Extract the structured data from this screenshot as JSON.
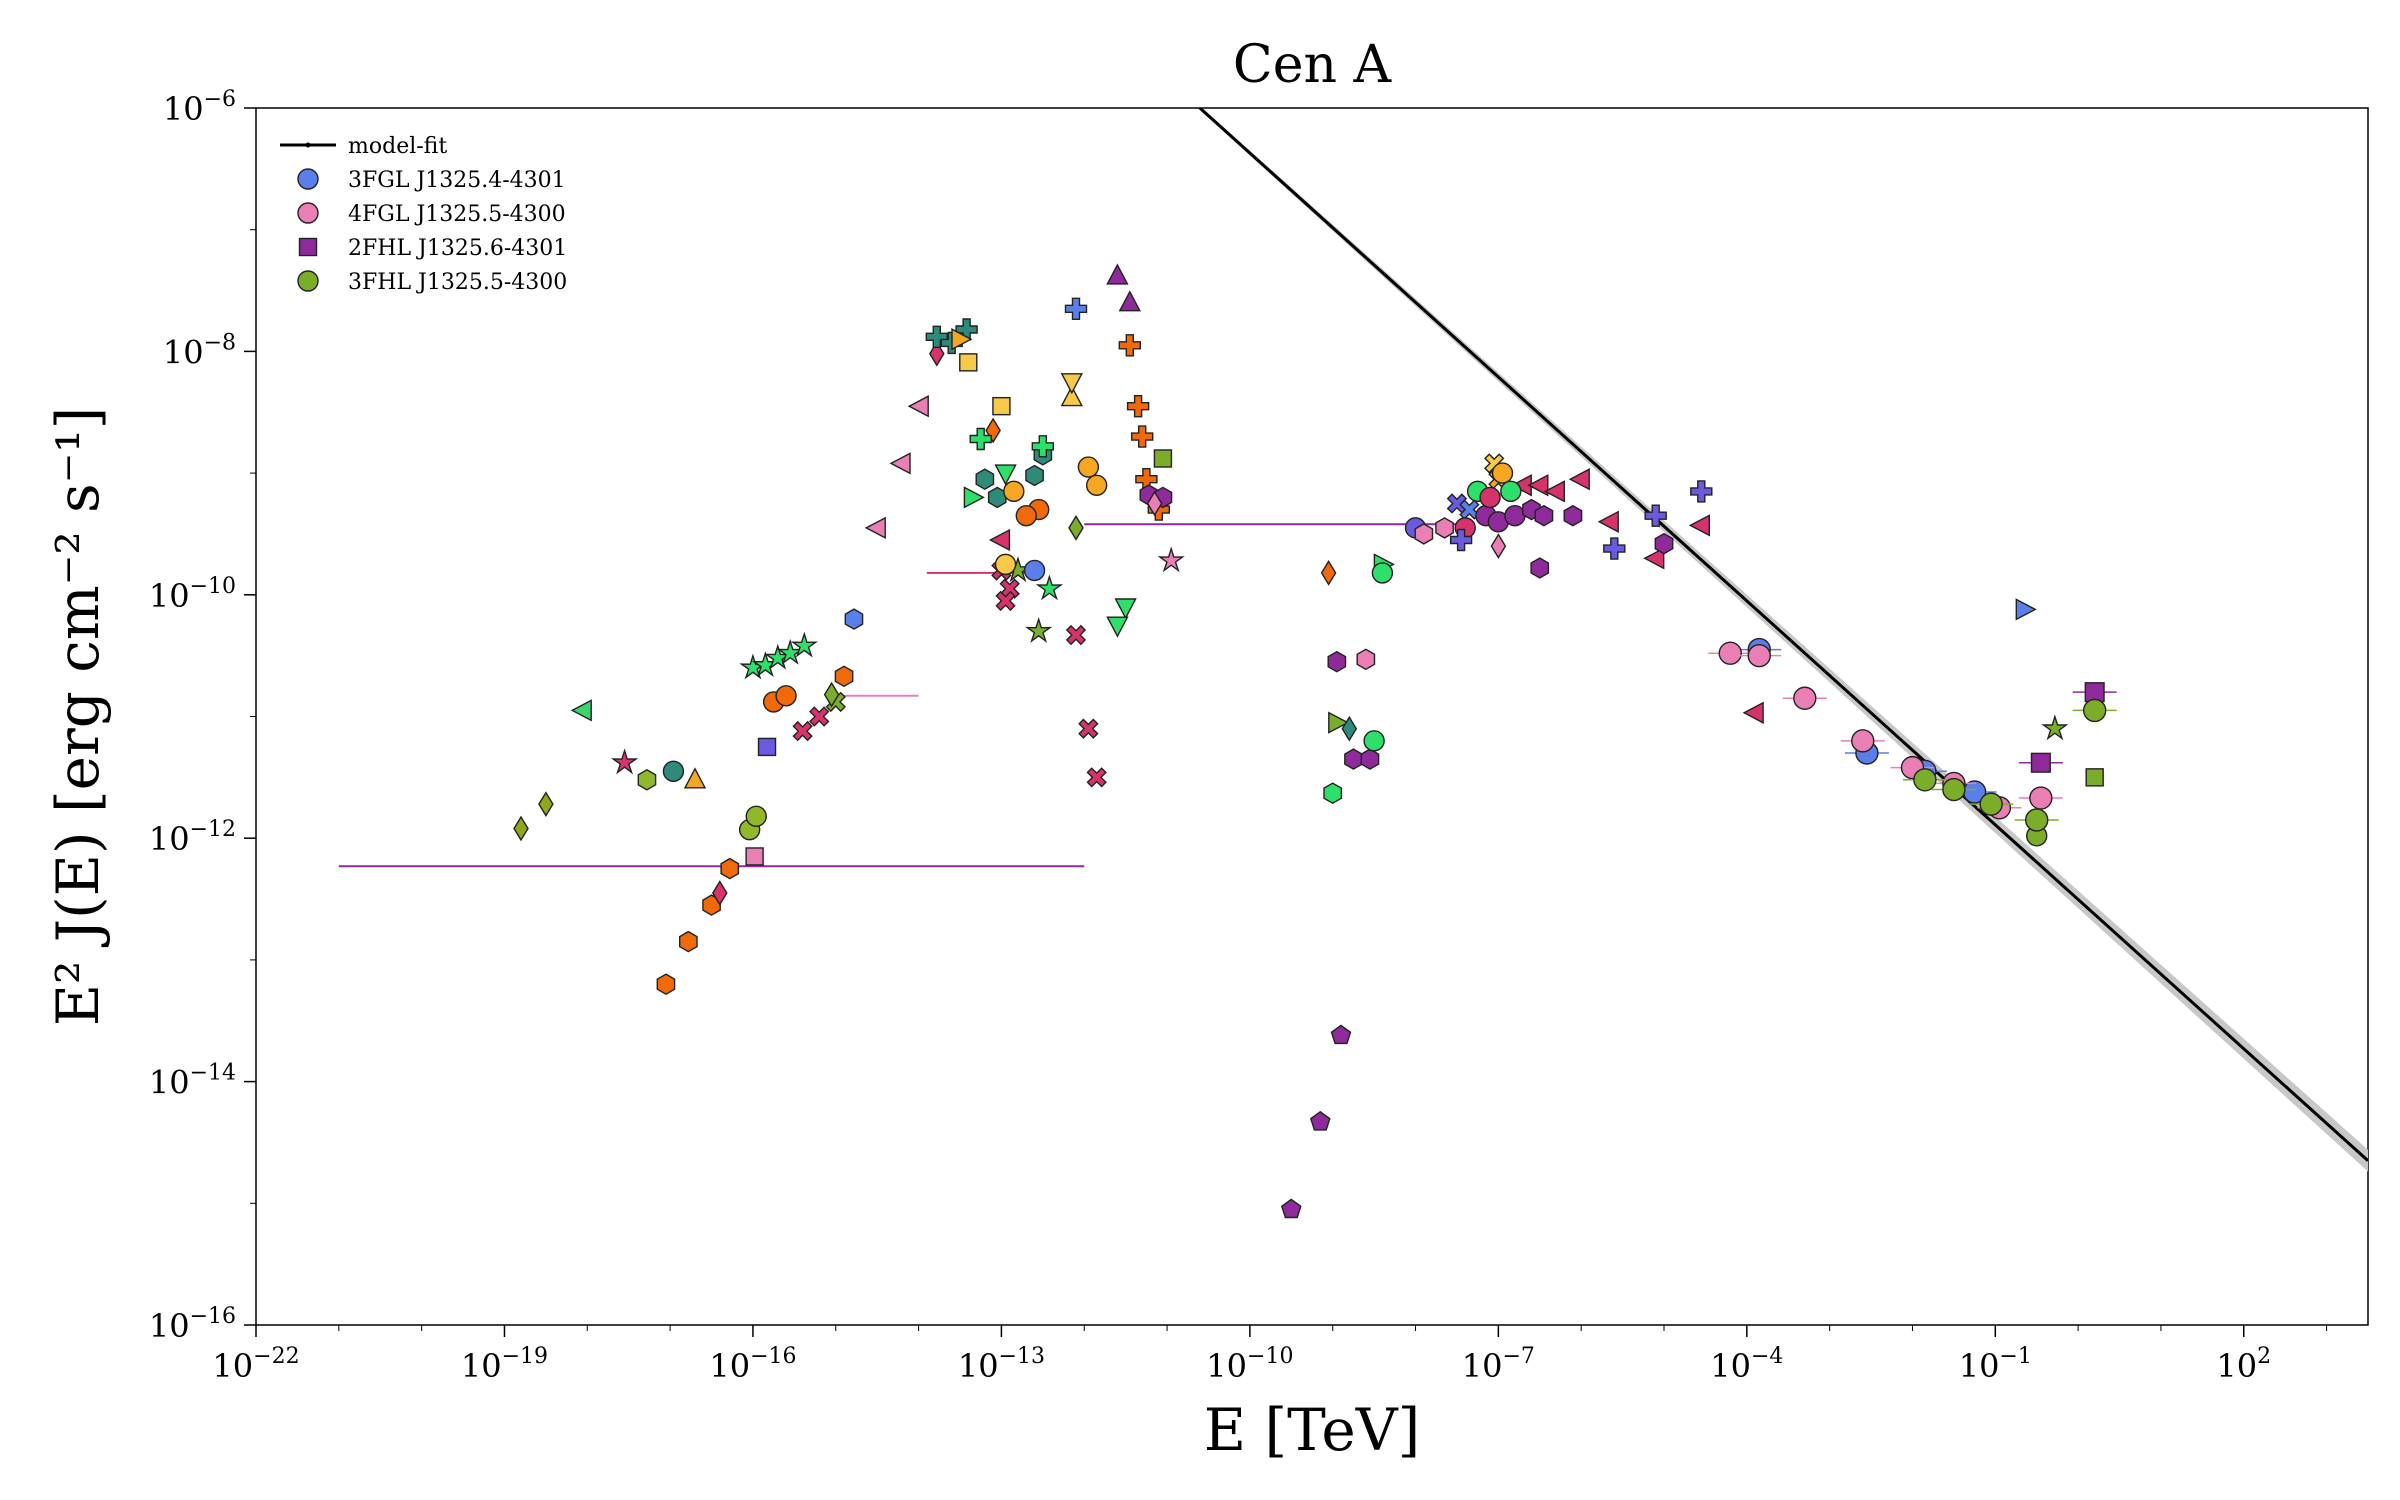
{
  "chart_data": {
    "type": "scatter",
    "title": "Cen A",
    "xlabel": "E [TeV]",
    "ylabel": "E² J(E) [erg cm⁻² s⁻¹]",
    "x_scale": "log",
    "y_scale": "log",
    "xlim_log10": [
      -22,
      3.5
    ],
    "ylim_log10": [
      -16,
      -6
    ],
    "x_ticks": [
      {
        "exp": -22,
        "base": "10",
        "sup": "−22"
      },
      {
        "exp": -19,
        "base": "10",
        "sup": "−19"
      },
      {
        "exp": -16,
        "base": "10",
        "sup": "−16"
      },
      {
        "exp": -13,
        "base": "10",
        "sup": "−13"
      },
      {
        "exp": -10,
        "base": "10",
        "sup": "−10"
      },
      {
        "exp": -7,
        "base": "10",
        "sup": "−7"
      },
      {
        "exp": -4,
        "base": "10",
        "sup": "−4"
      },
      {
        "exp": -1,
        "base": "10",
        "sup": "−1"
      },
      {
        "exp": 2,
        "base": "10",
        "sup": "2"
      }
    ],
    "y_ticks": [
      {
        "exp": -6,
        "base": "10",
        "sup": "−6"
      },
      {
        "exp": -8,
        "base": "10",
        "sup": "−8"
      },
      {
        "exp": -10,
        "base": "10",
        "sup": "−10"
      },
      {
        "exp": -12,
        "base": "10",
        "sup": "−12"
      },
      {
        "exp": -14,
        "base": "10",
        "sup": "−14"
      },
      {
        "exp": -16,
        "base": "10",
        "sup": "−16"
      }
    ],
    "legend": [
      {
        "label": "model-fit",
        "marker": "line",
        "color": "#000000"
      },
      {
        "label": "3FGL J1325.4-4301",
        "marker": "circle",
        "color": "#5b7fe8"
      },
      {
        "label": "4FGL J1325.5-4300",
        "marker": "circle",
        "color": "#e97fb5"
      },
      {
        "label": "2FHL J1325.6-4301",
        "marker": "square",
        "color": "#8e2a9a"
      },
      {
        "label": "3FHL J1325.5-4300",
        "marker": "circle",
        "color": "#7cad2a"
      }
    ],
    "model_fit": {
      "points_log10": [
        [
          -10.62,
          -5.99
        ],
        [
          3.5,
          -14.65
        ]
      ],
      "band_width_dex": 0.06,
      "color": "#000000"
    },
    "series": [
      {
        "name": "3FGL J1325.4-4301",
        "marker": "circle",
        "color": "#5b7fe8",
        "points_log10": [
          [
            -3.85,
            -10.45
          ],
          [
            -2.55,
            -11.3
          ],
          [
            -1.85,
            -11.45
          ],
          [
            -1.25,
            -11.62
          ]
        ]
      },
      {
        "name": "4FGL J1325.5-4300",
        "marker": "circle",
        "color": "#e97fb5",
        "points_log10": [
          [
            -4.2,
            -10.48
          ],
          [
            -3.85,
            -10.5
          ],
          [
            -3.3,
            -10.85
          ],
          [
            -2.6,
            -11.2
          ],
          [
            -2.0,
            -11.42
          ],
          [
            -1.5,
            -11.55
          ],
          [
            -0.95,
            -11.75
          ],
          [
            -0.45,
            -11.67
          ]
        ]
      },
      {
        "name": "2FHL J1325.6-4301",
        "marker": "square",
        "color": "#8e2a9a",
        "points_log10": [
          [
            -0.45,
            -11.38
          ],
          [
            0.2,
            -10.8
          ]
        ]
      },
      {
        "name": "3FHL J1325.5-4300",
        "marker": "circle",
        "color": "#7cad2a",
        "points_log10": [
          [
            -1.85,
            -11.52
          ],
          [
            -1.5,
            -11.6
          ],
          [
            -1.05,
            -11.72
          ],
          [
            -0.5,
            -11.85
          ],
          [
            0.2,
            -10.95
          ]
        ]
      }
    ],
    "archival_points": [
      {
        "marker": "diamond",
        "color": "#8fa61f",
        "x": -18.8,
        "y": -11.92
      },
      {
        "marker": "diamond",
        "color": "#8fa61f",
        "x": -18.5,
        "y": -11.72
      },
      {
        "marker": "tri-left",
        "color": "#3bd46a",
        "x": -18.05,
        "y": -10.95
      },
      {
        "marker": "star",
        "color": "#d6336c",
        "x": -17.55,
        "y": -11.38
      },
      {
        "marker": "hexagon",
        "color": "#8fb82a",
        "x": -17.28,
        "y": -11.52
      },
      {
        "marker": "circle",
        "color": "#2e8b7a",
        "x": -16.96,
        "y": -11.45
      },
      {
        "marker": "tri-up",
        "color": "#f5a623",
        "x": -16.7,
        "y": -11.52
      },
      {
        "marker": "hexagon",
        "color": "#f06a0a",
        "x": -17.05,
        "y": -13.2
      },
      {
        "marker": "hexagon",
        "color": "#f06a0a",
        "x": -16.78,
        "y": -12.85
      },
      {
        "marker": "hexagon",
        "color": "#f06a0a",
        "x": -16.5,
        "y": -12.55
      },
      {
        "marker": "hexagon",
        "color": "#f06a0a",
        "x": -16.28,
        "y": -12.25
      },
      {
        "marker": "diamond",
        "color": "#d6336c",
        "x": -16.4,
        "y": -12.45
      },
      {
        "marker": "circle",
        "color": "#8fb82a",
        "x": -16.04,
        "y": -11.93
      },
      {
        "marker": "circle",
        "color": "#8fb82a",
        "x": -15.96,
        "y": -11.82
      },
      {
        "marker": "square",
        "color": "#e97fb5",
        "x": -15.98,
        "y": -12.15
      },
      {
        "marker": "square",
        "color": "#6a5ae0",
        "x": -15.83,
        "y": -11.25
      },
      {
        "marker": "star",
        "color": "#2ee06a",
        "x": -16.0,
        "y": -10.6
      },
      {
        "marker": "star",
        "color": "#2ee06a",
        "x": -15.85,
        "y": -10.58
      },
      {
        "marker": "star",
        "color": "#2ee06a",
        "x": -15.7,
        "y": -10.52
      },
      {
        "marker": "star",
        "color": "#2ee06a",
        "x": -15.55,
        "y": -10.48
      },
      {
        "marker": "star",
        "color": "#2ee06a",
        "x": -15.38,
        "y": -10.42
      },
      {
        "marker": "circle",
        "color": "#f06a0a",
        "x": -15.75,
        "y": -10.88
      },
      {
        "marker": "circle",
        "color": "#f06a0a",
        "x": -15.6,
        "y": -10.83
      },
      {
        "marker": "x",
        "color": "#d6336c",
        "x": -15.4,
        "y": -11.12
      },
      {
        "marker": "x",
        "color": "#d6336c",
        "x": -15.2,
        "y": -11.0
      },
      {
        "marker": "x",
        "color": "#7cad2a",
        "x": -15.0,
        "y": -10.88
      },
      {
        "marker": "diamond",
        "color": "#7cad2a",
        "x": -15.05,
        "y": -10.82
      },
      {
        "marker": "hexagon",
        "color": "#f06a0a",
        "x": -14.9,
        "y": -10.67
      },
      {
        "marker": "hexagon",
        "color": "#5b7fe8",
        "x": -14.78,
        "y": -10.2
      },
      {
        "marker": "tri-left",
        "color": "#e97fb5",
        "x": -14.5,
        "y": -9.45
      },
      {
        "marker": "tri-left",
        "color": "#e97fb5",
        "x": -14.2,
        "y": -8.92
      },
      {
        "marker": "tri-left",
        "color": "#e97fb5",
        "x": -13.98,
        "y": -8.45
      },
      {
        "marker": "diamond",
        "color": "#d6336c",
        "x": -13.78,
        "y": -8.02
      },
      {
        "marker": "plus",
        "color": "#2e8b7a",
        "x": -13.78,
        "y": -7.88
      },
      {
        "marker": "plus",
        "color": "#2e8b7a",
        "x": -13.6,
        "y": -7.93
      },
      {
        "marker": "plus",
        "color": "#2e8b7a",
        "x": -13.42,
        "y": -7.82
      },
      {
        "marker": "tri-right",
        "color": "#f5a623",
        "x": -13.5,
        "y": -7.9
      },
      {
        "marker": "square",
        "color": "#f7c948",
        "x": -13.4,
        "y": -8.09
      },
      {
        "marker": "diamond",
        "color": "#f06a0a",
        "x": -13.1,
        "y": -8.65
      },
      {
        "marker": "plus",
        "color": "#2ee06a",
        "x": -13.25,
        "y": -8.72
      },
      {
        "marker": "square",
        "color": "#f7c948",
        "x": -13.0,
        "y": -8.45
      },
      {
        "marker": "tri-right",
        "color": "#2ee06a",
        "x": -13.35,
        "y": -9.2
      },
      {
        "marker": "hexagon",
        "color": "#2e8b7a",
        "x": -13.2,
        "y": -9.05
      },
      {
        "marker": "hexagon",
        "color": "#2e8b7a",
        "x": -13.05,
        "y": -9.2
      },
      {
        "marker": "tri-down",
        "color": "#2ee06a",
        "x": -12.95,
        "y": -9.0
      },
      {
        "marker": "circle",
        "color": "#f5a623",
        "x": -12.85,
        "y": -9.15
      },
      {
        "marker": "hexagon",
        "color": "#2e8b7a",
        "x": -12.6,
        "y": -9.02
      },
      {
        "marker": "hexagon",
        "color": "#2e8b7a",
        "x": -12.5,
        "y": -8.85
      },
      {
        "marker": "plus",
        "color": "#2ee06a",
        "x": -12.5,
        "y": -8.78
      },
      {
        "marker": "circle",
        "color": "#f06a0a",
        "x": -12.55,
        "y": -9.3
      },
      {
        "marker": "circle",
        "color": "#f06a0a",
        "x": -12.7,
        "y": -9.35
      },
      {
        "marker": "tri-left",
        "color": "#d6336c",
        "x": -13.0,
        "y": -9.55
      },
      {
        "marker": "x",
        "color": "#d6336c",
        "x": -13.0,
        "y": -9.8
      },
      {
        "marker": "x",
        "color": "#d6336c",
        "x": -12.9,
        "y": -9.95
      },
      {
        "marker": "x",
        "color": "#d6336c",
        "x": -12.95,
        "y": -10.05
      },
      {
        "marker": "star",
        "color": "#7cad2a",
        "x": -12.8,
        "y": -9.8
      },
      {
        "marker": "star",
        "color": "#2ee06a",
        "x": -12.42,
        "y": -9.95
      },
      {
        "marker": "star",
        "color": "#7cad2a",
        "x": -12.55,
        "y": -10.3
      },
      {
        "marker": "circle",
        "color": "#5b7fe8",
        "x": -12.6,
        "y": -9.8
      },
      {
        "marker": "circle",
        "color": "#f7c948",
        "x": -12.95,
        "y": -9.75
      },
      {
        "marker": "x",
        "color": "#d6336c",
        "x": -12.1,
        "y": -10.33
      },
      {
        "marker": "plus",
        "color": "#5b7fe8",
        "x": -12.1,
        "y": -7.65
      },
      {
        "marker": "tri-up",
        "color": "#8e2a9a",
        "x": -11.6,
        "y": -7.38
      },
      {
        "marker": "tri-up",
        "color": "#8e2a9a",
        "x": -11.45,
        "y": -7.6
      },
      {
        "marker": "plus",
        "color": "#f06a0a",
        "x": -11.45,
        "y": -7.95
      },
      {
        "marker": "plus",
        "color": "#f06a0a",
        "x": -11.35,
        "y": -8.45
      },
      {
        "marker": "plus",
        "color": "#f06a0a",
        "x": -11.3,
        "y": -8.7
      },
      {
        "marker": "plus",
        "color": "#f06a0a",
        "x": -11.25,
        "y": -9.05
      },
      {
        "marker": "plus",
        "color": "#f06a0a",
        "x": -11.1,
        "y": -9.3
      },
      {
        "marker": "square",
        "color": "#7cad2a",
        "x": -11.05,
        "y": -8.88
      },
      {
        "marker": "hexagon",
        "color": "#8e2a9a",
        "x": -11.22,
        "y": -9.18
      },
      {
        "marker": "hexagon",
        "color": "#8e2a9a",
        "x": -11.05,
        "y": -9.2
      },
      {
        "marker": "diamond",
        "color": "#e97fb5",
        "x": -11.15,
        "y": -9.25
      },
      {
        "marker": "tri-up",
        "color": "#f7c948",
        "x": -12.15,
        "y": -8.38
      },
      {
        "marker": "tri-down",
        "color": "#f7c948",
        "x": -12.15,
        "y": -8.25
      },
      {
        "marker": "circle",
        "color": "#f5a623",
        "x": -11.95,
        "y": -8.95
      },
      {
        "marker": "circle",
        "color": "#f5a623",
        "x": -11.85,
        "y": -9.1
      },
      {
        "marker": "diamond",
        "color": "#7cad2a",
        "x": -12.1,
        "y": -9.45
      },
      {
        "marker": "tri-down",
        "color": "#2ee06a",
        "x": -11.5,
        "y": -10.1
      },
      {
        "marker": "tri-down",
        "color": "#2ee06a",
        "x": -11.6,
        "y": -10.25
      },
      {
        "marker": "x",
        "color": "#d6336c",
        "x": -11.95,
        "y": -11.1
      },
      {
        "marker": "x",
        "color": "#d6336c",
        "x": -11.85,
        "y": -11.5
      },
      {
        "marker": "star",
        "color": "#e97fb5",
        "x": -10.95,
        "y": -9.72
      },
      {
        "marker": "diamond",
        "color": "#f06a0a",
        "x": -9.05,
        "y": -9.82
      },
      {
        "marker": "hexagon",
        "color": "#8e2a9a",
        "x": -8.95,
        "y": -10.55
      },
      {
        "marker": "hexagon",
        "color": "#e97fb5",
        "x": -8.6,
        "y": -10.53
      },
      {
        "marker": "tri-right",
        "color": "#7cad2a",
        "x": -8.95,
        "y": -11.05
      },
      {
        "marker": "diamond",
        "color": "#2e8b7a",
        "x": -8.8,
        "y": -11.1
      },
      {
        "marker": "hexagon",
        "color": "#8e2a9a",
        "x": -8.75,
        "y": -11.35
      },
      {
        "marker": "hexagon",
        "color": "#8e2a9a",
        "x": -8.55,
        "y": -11.35
      },
      {
        "marker": "circle",
        "color": "#2ee06a",
        "x": -8.5,
        "y": -11.2
      },
      {
        "marker": "hexagon",
        "color": "#2ee06a",
        "x": -9.0,
        "y": -11.63
      },
      {
        "marker": "pentagon",
        "color": "#8e2a9a",
        "x": -8.9,
        "y": -13.62
      },
      {
        "marker": "pentagon",
        "color": "#8e2a9a",
        "x": -9.15,
        "y": -14.33
      },
      {
        "marker": "pentagon",
        "color": "#8e2a9a",
        "x": -9.5,
        "y": -15.05
      },
      {
        "marker": "tri-right",
        "color": "#2ee06a",
        "x": -8.4,
        "y": -9.75
      },
      {
        "marker": "circle",
        "color": "#2ee06a",
        "x": -8.4,
        "y": -9.82
      },
      {
        "marker": "circle",
        "color": "#6a5ae0",
        "x": -8.0,
        "y": -9.45
      },
      {
        "marker": "hexagon",
        "color": "#e97fb5",
        "x": -7.65,
        "y": -9.45
      },
      {
        "marker": "hexagon",
        "color": "#e97fb5",
        "x": -7.9,
        "y": -9.5
      },
      {
        "marker": "x",
        "color": "#f5a623",
        "x": -7.0,
        "y": -9.05
      },
      {
        "marker": "x",
        "color": "#f7c948",
        "x": -7.05,
        "y": -8.92
      },
      {
        "marker": "circle",
        "color": "#f5a623",
        "x": -6.95,
        "y": -9.0
      },
      {
        "marker": "circle",
        "color": "#2ee06a",
        "x": -7.25,
        "y": -9.15
      },
      {
        "marker": "x",
        "color": "#6a5ae0",
        "x": -7.5,
        "y": -9.25
      },
      {
        "marker": "x",
        "color": "#5b7fe8",
        "x": -7.35,
        "y": -9.3
      },
      {
        "marker": "circle",
        "color": "#8e2a9a",
        "x": -7.15,
        "y": -9.35
      },
      {
        "marker": "circle",
        "color": "#8e2a9a",
        "x": -7.0,
        "y": -9.4
      },
      {
        "marker": "circle",
        "color": "#8e2a9a",
        "x": -6.8,
        "y": -9.35
      },
      {
        "marker": "circle",
        "color": "#d6336c",
        "x": -7.1,
        "y": -9.2
      },
      {
        "marker": "circle",
        "color": "#d6336c",
        "x": -7.4,
        "y": -9.45
      },
      {
        "marker": "hexagon",
        "color": "#8e2a9a",
        "x": -6.6,
        "y": -9.3
      },
      {
        "marker": "hexagon",
        "color": "#8e2a9a",
        "x": -6.45,
        "y": -9.35
      },
      {
        "marker": "tri-left",
        "color": "#d6336c",
        "x": -6.7,
        "y": -9.1
      },
      {
        "marker": "tri-left",
        "color": "#d6336c",
        "x": -6.5,
        "y": -9.1
      },
      {
        "marker": "tri-left",
        "color": "#d6336c",
        "x": -6.3,
        "y": -9.15
      },
      {
        "marker": "tri-left",
        "color": "#d6336c",
        "x": -6.0,
        "y": -9.05
      },
      {
        "marker": "circle",
        "color": "#2ee06a",
        "x": -6.85,
        "y": -9.15
      },
      {
        "marker": "diamond",
        "color": "#e97fb5",
        "x": -7.0,
        "y": -9.6
      },
      {
        "marker": "hexagon",
        "color": "#8e2a9a",
        "x": -6.1,
        "y": -9.35
      },
      {
        "marker": "hexagon",
        "color": "#8e2a9a",
        "x": -6.5,
        "y": -9.78
      },
      {
        "marker": "plus",
        "color": "#6a5ae0",
        "x": -7.45,
        "y": -9.55
      },
      {
        "marker": "plus",
        "color": "#6a5ae0",
        "x": -5.6,
        "y": -9.62
      },
      {
        "marker": "plus",
        "color": "#6a5ae0",
        "x": -5.1,
        "y": -9.35
      },
      {
        "marker": "plus",
        "color": "#6a5ae0",
        "x": -4.55,
        "y": -9.15
      },
      {
        "marker": "tri-left",
        "color": "#d6336c",
        "x": -5.65,
        "y": -9.4
      },
      {
        "marker": "tri-left",
        "color": "#d6336c",
        "x": -5.1,
        "y": -9.7
      },
      {
        "marker": "tri-left",
        "color": "#d6336c",
        "x": -4.55,
        "y": -9.43
      },
      {
        "marker": "hexagon",
        "color": "#8e2a9a",
        "x": -5.0,
        "y": -9.58
      },
      {
        "marker": "tri-left",
        "color": "#d6336c",
        "x": -3.9,
        "y": -10.97
      },
      {
        "marker": "tri-right",
        "color": "#5b7fe8",
        "x": -0.65,
        "y": -10.12
      },
      {
        "marker": "star",
        "color": "#7cad2a",
        "x": -0.28,
        "y": -11.1
      },
      {
        "marker": "square",
        "color": "#7cad2a",
        "x": 0.2,
        "y": -11.5
      },
      {
        "marker": "circle",
        "color": "#7cad2a",
        "x": -0.5,
        "y": -11.98
      }
    ],
    "horizontal_segments": [
      {
        "color": "#8e2a9a",
        "y": -12.23,
        "x_from": -21.0,
        "x_to": -12.0
      },
      {
        "color": "#8e2a9a",
        "y": -9.42,
        "x_from": -12.0,
        "x_to": -7.5
      },
      {
        "color": "#d6336c",
        "y": -9.82,
        "x_from": -13.9,
        "x_to": -12.6
      },
      {
        "color": "#e97fb5",
        "y": -10.83,
        "x_from": -15.0,
        "x_to": -14.0
      }
    ]
  }
}
